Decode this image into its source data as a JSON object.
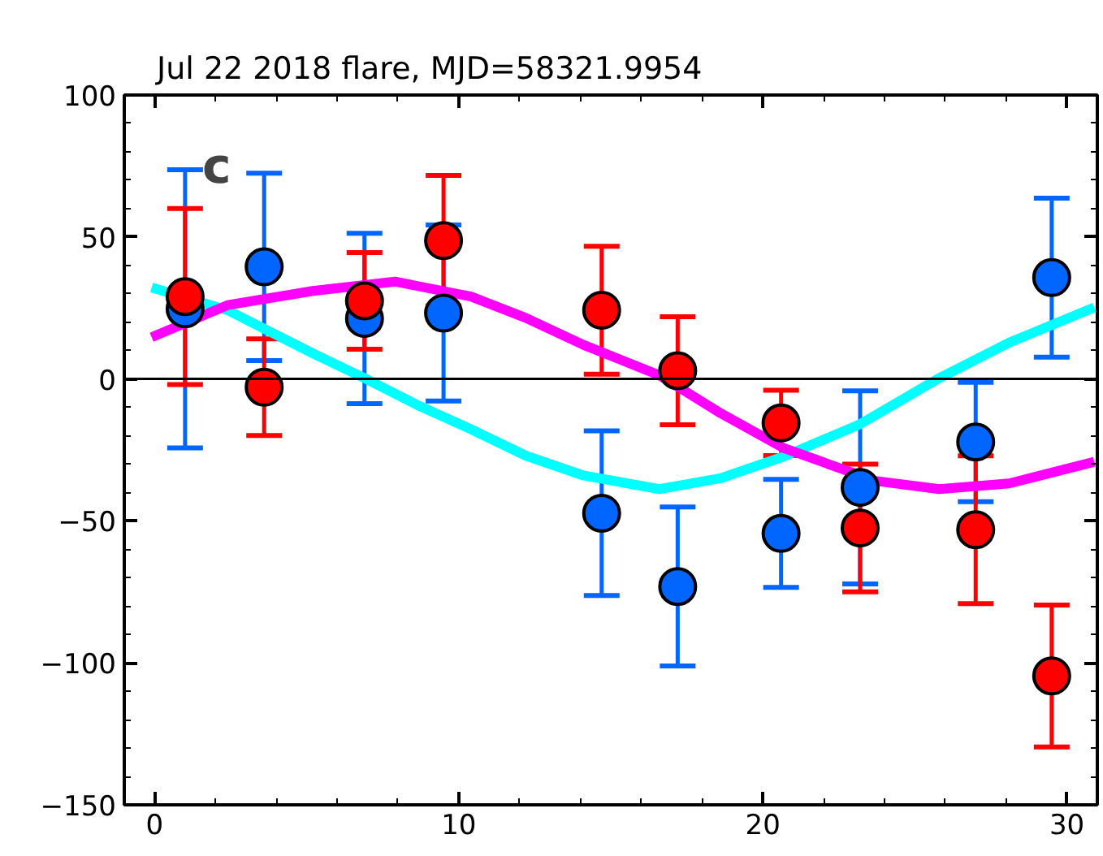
{
  "chart_data": {
    "type": "scatter",
    "title": "Jul 22 2018 flare, MJD=58321.9954",
    "annotations": [
      "c"
    ],
    "x": [
      1.0,
      3.6,
      6.9,
      9.5,
      14.7,
      17.2,
      20.6,
      23.2,
      27.0,
      29.5
    ],
    "series": [
      {
        "color": "#0066ff",
        "marker": "circle",
        "values": [
          24.7,
          39.5,
          21.3,
          23.2,
          -47.3,
          -73.1,
          -54.4,
          -38.2,
          -22.2,
          35.7
        ],
        "errors": [
          49,
          33,
          30,
          31,
          29,
          28,
          19,
          34,
          21,
          28
        ]
      },
      {
        "color": "#ff0000",
        "marker": "circle",
        "values": [
          29,
          -2.9,
          27.5,
          48.7,
          24.2,
          2.9,
          -15.5,
          -52.5,
          -53.1,
          -104.6
        ],
        "errors": [
          31,
          17,
          17,
          23,
          22.5,
          19,
          11.5,
          22.5,
          26,
          25
        ]
      },
      {
        "type": "line",
        "color": "#00ffff",
        "marker": "none",
        "x": [
          -0.1,
          2.4,
          5.2,
          6.9,
          8.7,
          10.4,
          12.2,
          14.1,
          16.6,
          18.6,
          20.7,
          23.2,
          25.8,
          28.1,
          30.9
        ],
        "values": [
          32.2,
          24.2,
          9,
          0.3,
          -9.5,
          -17.7,
          -27,
          -34,
          -38.8,
          -35,
          -27.3,
          -15.9,
          0.3,
          12.8,
          25.2
        ]
      },
      {
        "type": "line",
        "color": "#ff00ff",
        "marker": "none",
        "x": [
          -0.1,
          2.4,
          5.2,
          7.9,
          10.4,
          12.2,
          14.1,
          16.6,
          18.6,
          20.7,
          23.7,
          25.8,
          28.1,
          30.9
        ],
        "values": [
          14.7,
          26,
          31,
          34.3,
          29,
          21.5,
          12,
          1.3,
          -12,
          -24.4,
          -35.9,
          -38.8,
          -36.8,
          -29.2
        ]
      }
    ],
    "xlim": [
      -1,
      31
    ],
    "ylim": [
      -150,
      100
    ],
    "xticks": [
      0,
      10,
      20,
      30
    ],
    "yticks": [
      -150,
      -100,
      -50,
      0,
      50,
      100
    ],
    "ref_lines": [
      {
        "axis": "y",
        "value": 0,
        "color": "#000000"
      }
    ],
    "grid": false
  }
}
